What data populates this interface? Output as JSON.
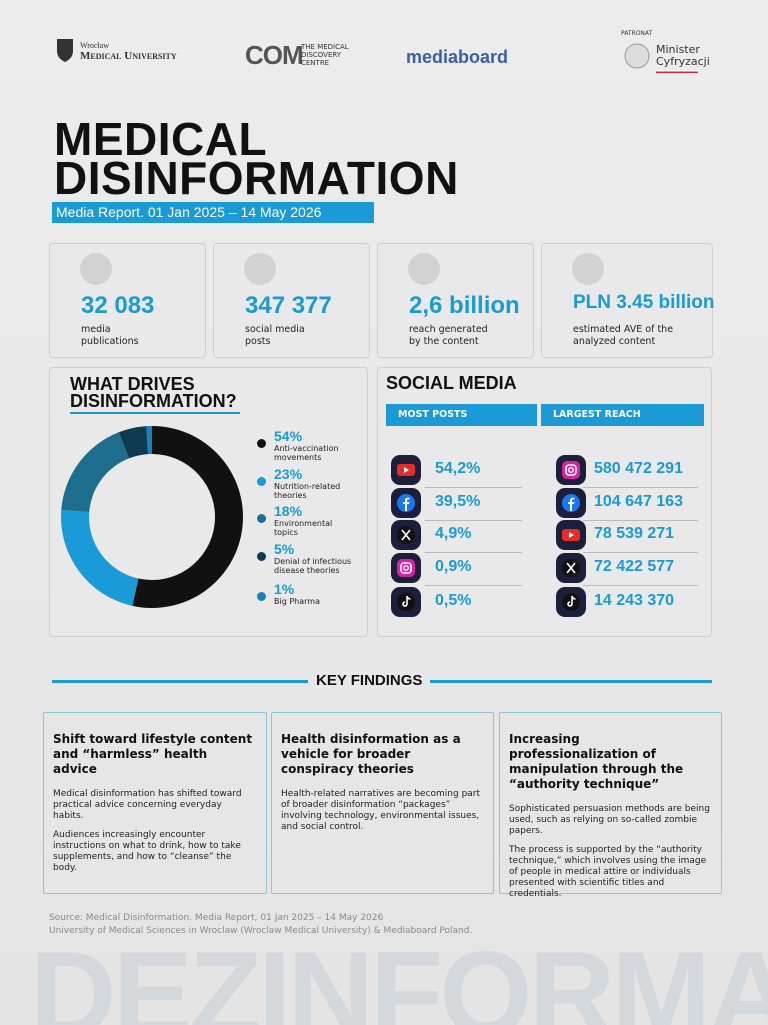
{
  "header": {
    "university_city": "Wrocław",
    "university": "Medical University",
    "com_mark": "COM",
    "com_name": "THE MEDICAL DISCOVERY CENTRE",
    "mediaboard": "mediaboard",
    "patronage": "PATRONAT",
    "minister": "Minister",
    "ministry": "Cyfryzacji"
  },
  "title": {
    "line1": "MEDICAL",
    "line2": "DISINFORMATION",
    "subtitle": "Media Report. 01 Jan 2025 – 14 May 2026"
  },
  "stats": [
    {
      "value": "32 083",
      "label": "media publications"
    },
    {
      "value": "347 377",
      "label": "social media posts"
    },
    {
      "value": "2,6 billion",
      "label": "reach generated by the content"
    },
    {
      "value": "PLN 3.45 billion",
      "label": "estimated AVE of the analyzed content"
    }
  ],
  "chart_data": {
    "type": "donut",
    "title": "WHAT DRIVES DISINFORMATION?",
    "categories": [
      "Anti-vaccination movements",
      "Nutrition-related theories",
      "Environmental topics",
      "Denial of infectious disease theories",
      "Big Pharma"
    ],
    "values": [
      54,
      23,
      18,
      5,
      1
    ],
    "value_labels": [
      "54%",
      "23%",
      "18%",
      "5%",
      "1%"
    ],
    "colors": [
      "#111111",
      "#1a9ad6",
      "#1c6d8e",
      "#0f3b50",
      "#1583b8"
    ]
  },
  "social_media": {
    "title": "SOCIAL MEDIA",
    "columns": [
      "MOST POSTS",
      "LARGEST REACH"
    ],
    "most_posts": [
      "54,2%",
      "39,5%",
      "4,9%",
      "0,9%",
      "0,5%"
    ],
    "largest_reach": [
      "580 472 291",
      "104 647 163",
      "78 539 271",
      "72 422 577",
      "14 243 370"
    ]
  },
  "key_findings": {
    "title": "KEY FINDINGS",
    "cards": [
      {
        "title": "Shift toward lifestyle content and “harmless” health advice",
        "paragraphs": [
          "Medical disinformation has shifted toward practical advice concerning everyday habits.",
          "Audiences increasingly encounter instructions on what to drink, how to take supplements, and how to “cleanse” the body."
        ]
      },
      {
        "title": "Health disinformation as a vehicle for broader conspiracy theories",
        "paragraphs": [
          "Health-related narratives are becoming part of broader disinformation “packages” involving technology, environmental issues, and social control."
        ]
      },
      {
        "title": "Increasing professionalization of manipulation through the “authority technique”",
        "paragraphs": [
          "Sophisticated persuasion methods are being used, such as relying on so-called zombie papers.",
          "The process is supported by the “authority technique,” which involves using the image of people in medical attire or individuals presented with scientific titles and credentials."
        ]
      }
    ]
  },
  "source": [
    "Source: Medical Disinformation. Media Report, 01 Jan 2025 – 14 May 2026",
    "University of Medical Sciences in Wroclaw (Wroclaw Medical University) & Mediaboard Poland."
  ],
  "watermark": "DEZINFORMACJA"
}
